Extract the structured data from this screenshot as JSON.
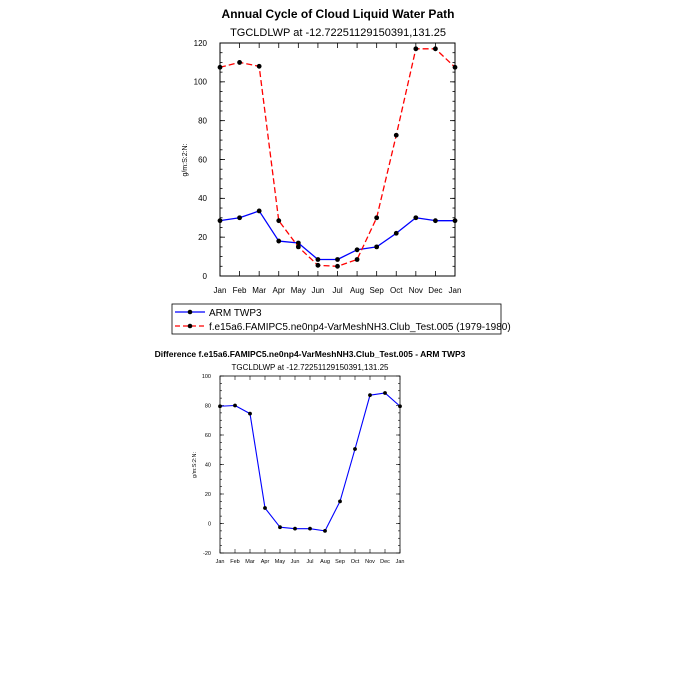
{
  "chart_data": [
    {
      "type": "line",
      "title": "Annual Cycle of Cloud Liquid Water Path",
      "subtitle": "TGCLDLWP at -12.72251129150391,131.25",
      "ylabel": "g/m:S:2:N:",
      "xlabel": "",
      "ylim": [
        0,
        120
      ],
      "yticks": [
        0,
        20,
        40,
        60,
        80,
        100,
        120
      ],
      "categories": [
        "Jan",
        "Feb",
        "Mar",
        "Apr",
        "May",
        "Jun",
        "Jul",
        "Aug",
        "Sep",
        "Oct",
        "Nov",
        "Dec",
        "Jan"
      ],
      "series": [
        {
          "name": "ARM TWP3",
          "color": "#0000ff",
          "dash": "solid",
          "values": [
            28.5,
            30,
            33.5,
            18,
            17,
            8.5,
            8.5,
            13.5,
            15,
            22,
            30,
            28.5,
            28.5
          ]
        },
        {
          "name": "f.e15a6.FAMIPC5.ne0np4-VarMeshNH3.Club_Test.005 (1979-1980)",
          "color": "#ff0000",
          "dash": "dashed",
          "values": [
            107.5,
            110,
            108,
            28.5,
            15,
            5.5,
            5,
            8.5,
            30,
            72.5,
            117,
            117,
            107.5
          ]
        }
      ],
      "grid": false,
      "legend": "below"
    },
    {
      "type": "line",
      "title": "Difference f.e15a6.FAMIPC5.ne0np4-VarMeshNH3.Club_Test.005 - ARM TWP3",
      "subtitle": "TGCLDLWP at -12.72251129150391,131.25",
      "ylabel": "g/m:S:2:N:",
      "xlabel": "",
      "ylim": [
        -20,
        100
      ],
      "yticks": [
        -20,
        0,
        20,
        40,
        60,
        80,
        100
      ],
      "categories": [
        "Jan",
        "Feb",
        "Mar",
        "Apr",
        "May",
        "Jun",
        "Jul",
        "Aug",
        "Sep",
        "Oct",
        "Nov",
        "Dec",
        "Jan"
      ],
      "series": [
        {
          "color": "#0000ff",
          "dash": "solid",
          "values": [
            79.5,
            80,
            74.5,
            10.5,
            -2.5,
            -3.5,
            -3.5,
            -5,
            15,
            50.5,
            87,
            88.5,
            79.5
          ]
        }
      ],
      "grid": false,
      "legend": "none"
    }
  ]
}
